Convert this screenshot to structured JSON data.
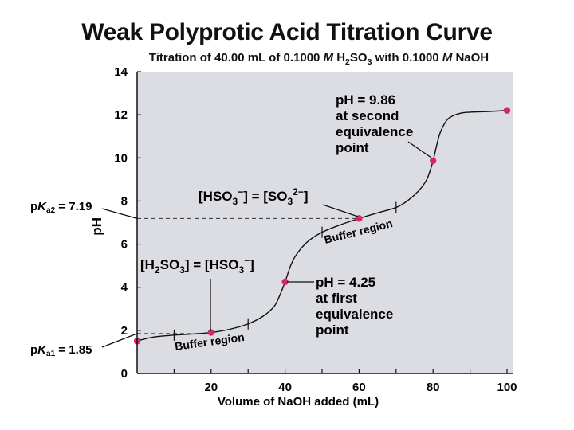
{
  "chart_data": {
    "type": "line",
    "title": "Weak Polyprotic Acid Titration Curve",
    "subtitle_parts": [
      "Titration of 40.00 mL of 0.1000 ",
      "M",
      " H",
      "2",
      "SO",
      "3",
      " with 0.1000 ",
      "M",
      " NaOH"
    ],
    "xlabel": "Volume of NaOH added (mL)",
    "ylabel": "pH",
    "xlim": [
      0,
      100
    ],
    "ylim": [
      0,
      14
    ],
    "x_ticks": [
      20,
      40,
      60,
      80,
      100
    ],
    "y_ticks": [
      0,
      2,
      4,
      6,
      8,
      10,
      12,
      14
    ],
    "series": [
      {
        "x": [
          0,
          2,
          5,
          10,
          15,
          20,
          25,
          30,
          34,
          37,
          38.5,
          40,
          41.5,
          43,
          46,
          50,
          55,
          60,
          65,
          70,
          73,
          76,
          78,
          79,
          80,
          81,
          82,
          84,
          87,
          90,
          95,
          100
        ],
        "y": [
          1.5,
          1.6,
          1.7,
          1.78,
          1.83,
          1.9,
          2.05,
          2.3,
          2.65,
          3.1,
          3.6,
          4.25,
          5.0,
          5.5,
          6.1,
          6.55,
          6.9,
          7.19,
          7.45,
          7.7,
          8.0,
          8.45,
          8.9,
          9.3,
          9.86,
          10.6,
          11.2,
          11.8,
          12.05,
          12.12,
          12.15,
          12.2
        ]
      }
    ],
    "marked_points": {
      "x": [
        0,
        20,
        40,
        60,
        80,
        100
      ],
      "y": [
        1.5,
        1.9,
        4.25,
        7.19,
        9.86,
        12.2
      ]
    },
    "pka1": {
      "parts": [
        "p",
        "K",
        "a1",
        " = 1.85"
      ],
      "value": 1.85
    },
    "pka2": {
      "parts": [
        "p",
        "K",
        "a2",
        " = 7.19"
      ],
      "value": 7.19
    },
    "buffer_label": "Buffer region",
    "buffer_regions": [
      {
        "x_start": 10,
        "x_end": 30
      },
      {
        "x_start": 50,
        "x_end": 70
      }
    ],
    "annotations": {
      "first_eq": [
        "pH = 4.25",
        "at first",
        "equivalence",
        "point"
      ],
      "second_eq": [
        "pH = 9.86",
        "at second",
        "equivalence",
        "point"
      ],
      "half_eq1": [
        "[H",
        "2",
        "SO",
        "3",
        "] = [HSO",
        "3",
        "−",
        "]"
      ],
      "half_eq2": [
        "[HSO",
        "3",
        "−",
        "] = [SO",
        "3",
        "2−",
        "]"
      ]
    },
    "colors": {
      "plot_bg": "#dcdde3",
      "curve": "#111111",
      "point": "#d8266b"
    },
    "grid": false
  }
}
